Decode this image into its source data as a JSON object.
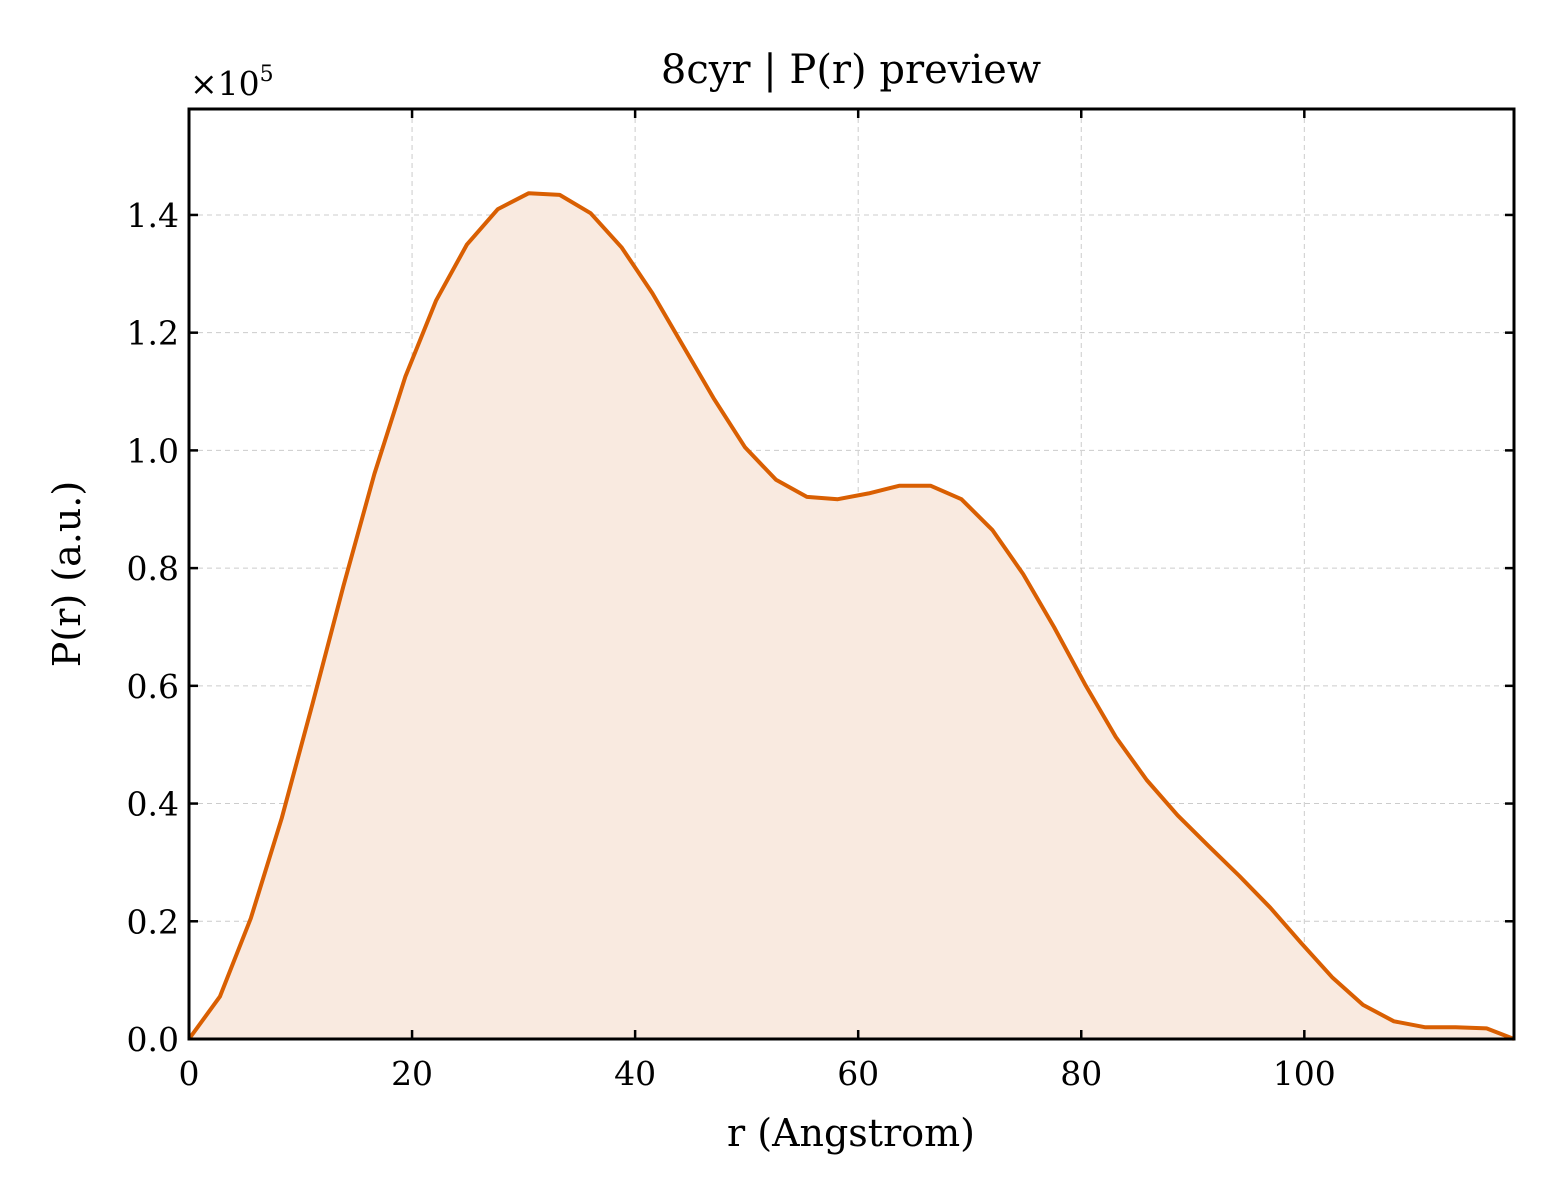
{
  "chart_data": {
    "type": "area",
    "title": "8cyr | P(r) preview",
    "xlabel": "r (Angstrom)",
    "ylabel": "P(r) (a.u.)",
    "y_multiplier": "×10",
    "y_multiplier_exp": "5",
    "xlim": [
      0,
      118.8
    ],
    "ylim": [
      0,
      1.58
    ],
    "xticks": [
      0,
      20,
      40,
      60,
      80,
      100
    ],
    "xtick_labels": [
      "0",
      "20",
      "40",
      "60",
      "80",
      "100"
    ],
    "yticks": [
      0,
      0.2,
      0.4,
      0.6,
      0.8,
      1.0,
      1.2,
      1.4
    ],
    "ytick_labels": [
      "0.0",
      "0.2",
      "0.4",
      "0.6",
      "0.8",
      "1.0",
      "1.2",
      "1.4"
    ],
    "grid": true,
    "line_color": "#d95f02",
    "fill_color": "#f9eae0",
    "series": [
      {
        "x": [
          0,
          2.77,
          5.54,
          8.31,
          11.08,
          13.85,
          16.62,
          19.39,
          22.16,
          24.93,
          27.7,
          30.47,
          33.24,
          36.01,
          38.78,
          41.55,
          44.32,
          47.09,
          49.86,
          52.63,
          55.4,
          58.17,
          60.94,
          63.71,
          66.48,
          69.25,
          72.02,
          74.79,
          77.56,
          80.33,
          83.1,
          85.87,
          88.64,
          91.41,
          94.18,
          96.95,
          99.72,
          102.49,
          105.26,
          108.03,
          110.8,
          113.57,
          116.34,
          118.8
        ],
        "values": [
          0,
          0.072,
          0.205,
          0.375,
          0.57,
          0.77,
          0.96,
          1.125,
          1.255,
          1.35,
          1.41,
          1.437,
          1.434,
          1.403,
          1.345,
          1.267,
          1.177,
          1.087,
          1.005,
          0.95,
          0.921,
          0.917,
          0.927,
          0.94,
          0.94,
          0.917,
          0.865,
          0.79,
          0.7,
          0.603,
          0.513,
          0.44,
          0.38,
          0.328,
          0.277,
          0.223,
          0.163,
          0.105,
          0.058,
          0.03,
          0.02,
          0.02,
          0.018,
          0.0
        ]
      }
    ]
  }
}
